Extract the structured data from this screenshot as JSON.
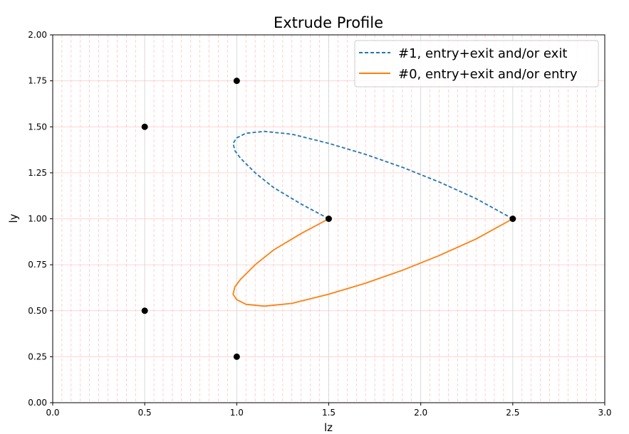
{
  "chart_data": {
    "type": "line",
    "title": "Extrude Profile",
    "xlabel": "lz",
    "ylabel": "ly",
    "xlim": [
      0.0,
      3.0
    ],
    "ylim": [
      0.0,
      2.0
    ],
    "x_ticks": [
      "0.0",
      "0.5",
      "1.0",
      "1.5",
      "2.0",
      "2.5",
      "3.0"
    ],
    "y_ticks": [
      "0.00",
      "0.25",
      "0.50",
      "0.75",
      "1.00",
      "1.25",
      "1.50",
      "1.75",
      "2.00"
    ],
    "grid": true,
    "legend_position": "upper right",
    "series": [
      {
        "name": "#1, entry+exit and/or exit",
        "style": "dashed",
        "color": "#1f77b4",
        "x": [
          1.5,
          1.35,
          1.2,
          1.1,
          1.02,
          0.99,
          0.98,
          1.0,
          1.05,
          1.15,
          1.3,
          1.5,
          1.7,
          1.9,
          2.1,
          2.3,
          2.5
        ],
        "y": [
          1.0,
          1.08,
          1.17,
          1.25,
          1.33,
          1.37,
          1.41,
          1.44,
          1.465,
          1.475,
          1.46,
          1.41,
          1.35,
          1.28,
          1.2,
          1.11,
          1.0
        ]
      },
      {
        "name": "#0, entry+exit and/or entry",
        "style": "solid",
        "color": "#ff7f0e",
        "x": [
          1.5,
          1.35,
          1.2,
          1.1,
          1.02,
          0.99,
          0.98,
          1.0,
          1.05,
          1.15,
          1.3,
          1.5,
          1.7,
          1.9,
          2.1,
          2.3,
          2.5
        ],
        "y": [
          1.0,
          0.92,
          0.83,
          0.75,
          0.67,
          0.63,
          0.59,
          0.56,
          0.535,
          0.525,
          0.54,
          0.59,
          0.65,
          0.72,
          0.8,
          0.89,
          1.0
        ]
      }
    ],
    "points": {
      "color": "#000000",
      "x": [
        0.5,
        1.0,
        0.5,
        1.0,
        1.5,
        2.5
      ],
      "y": [
        1.5,
        1.75,
        0.5,
        0.25,
        1.0,
        1.0
      ]
    }
  }
}
